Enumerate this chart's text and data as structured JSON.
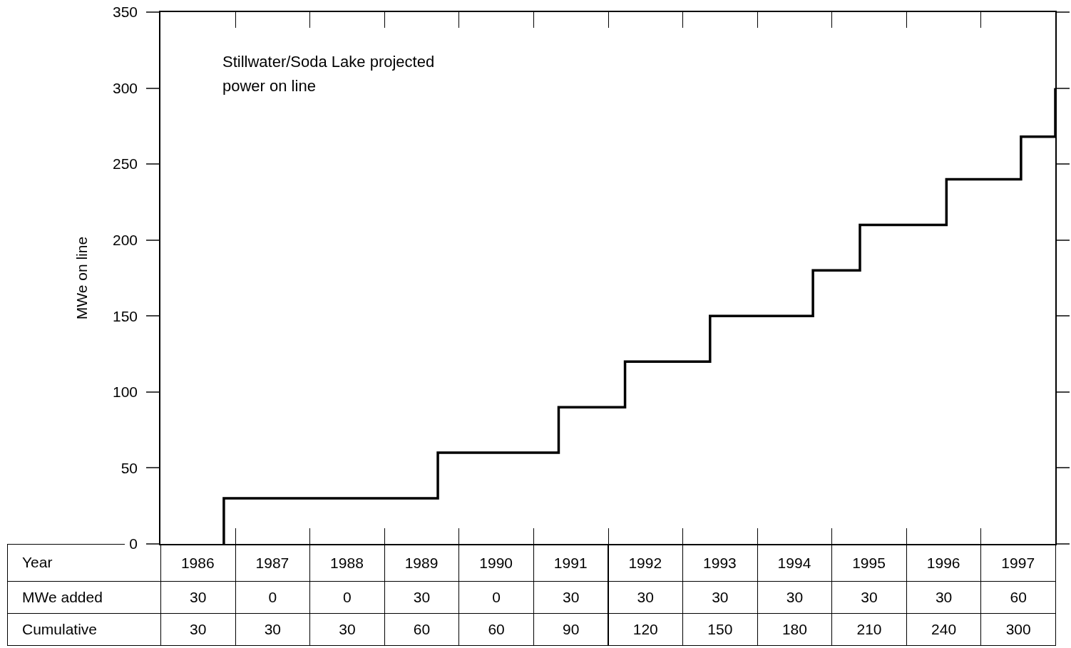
{
  "chart_data": {
    "type": "step",
    "title": "Stillwater/Soda Lake projected power on line",
    "ylabel": "MWe on line",
    "xlabel": "Year",
    "series": [
      {
        "color": "#000000",
        "x": [
          1986.85,
          1989.72,
          1991.34,
          1992.23,
          1993.37,
          1994.75,
          1995.38,
          1996.54,
          1997.54,
          1998,
          1998
        ],
        "values": [
          0,
          30,
          60,
          90,
          120,
          150,
          180,
          210,
          240,
          268,
          300
        ]
      }
    ],
    "xlim": [
      1986,
      1998
    ],
    "xticks": [
      {
        "value": 1986.5,
        "label": "1986"
      },
      {
        "value": 1987.5,
        "label": "1987"
      },
      {
        "value": 1988.5,
        "label": "1988"
      },
      {
        "value": 1989.5,
        "label": "1989"
      },
      {
        "value": 1990.5,
        "label": "1990"
      },
      {
        "value": 1991.5,
        "label": "1991"
      },
      {
        "value": 1992.5,
        "label": "1992"
      },
      {
        "value": 1993.5,
        "label": "1993"
      },
      {
        "value": 1994.5,
        "label": "1994"
      },
      {
        "value": 1995.5,
        "label": "1995"
      },
      {
        "value": 1996.5,
        "label": "1996"
      },
      {
        "value": 1997.5,
        "label": "1997"
      }
    ],
    "ylim": [
      0,
      350
    ],
    "yticks": [
      0,
      50,
      100,
      150,
      200,
      250,
      300,
      350
    ],
    "annotations": [
      "MWe added",
      "30",
      "0",
      "0",
      "30",
      "0",
      "30",
      "30",
      "30",
      "30",
      "30",
      "30",
      "60",
      "Cumulative",
      "30",
      "30",
      "30",
      "60",
      "60",
      "90",
      "120",
      "150",
      "180",
      "210",
      "240",
      "300"
    ],
    "grid": false,
    "legend": false,
    "line_style": "solid",
    "marker": "none"
  }
}
